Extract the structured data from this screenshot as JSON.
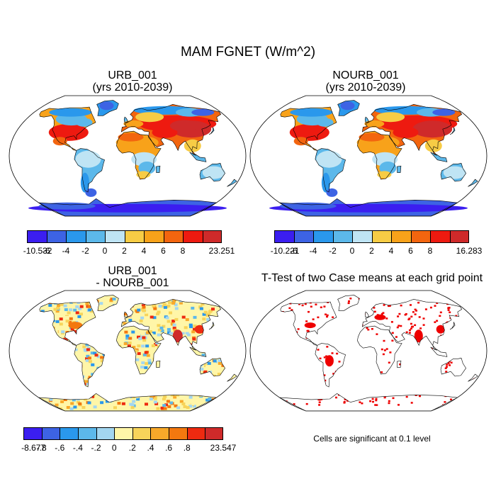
{
  "figure": {
    "title": "MAM FGNET (W/m^2)"
  },
  "panels": [
    {
      "id": "urb",
      "title_line1": "URB_001",
      "title_line2": "(yrs 2010-2039)"
    },
    {
      "id": "nourb",
      "title_line1": "NOURB_001",
      "title_line2": "(yrs 2010-2039)"
    },
    {
      "id": "diff",
      "title_line1": "URB_001",
      "title_line2": "- NOURB_001"
    },
    {
      "id": "ttest",
      "title_line1": "T-Test of two Case means at each grid point",
      "title_line2": ""
    }
  ],
  "colorbars": [
    {
      "id": "urb",
      "labels": [
        "-10.532",
        "-6",
        "-4",
        "-2",
        "0",
        "2",
        "4",
        "6",
        "8",
        "23.251"
      ],
      "colors": [
        "#3b1ef0",
        "#3d63e4",
        "#2a98ec",
        "#5cb8ea",
        "#bfe4f4",
        "#f7cc45",
        "#f8a21a",
        "#f3650f",
        "#ee1a10",
        "#cf2a2a"
      ]
    },
    {
      "id": "nourb",
      "labels": [
        "-10.221",
        "-6",
        "-4",
        "-2",
        "0",
        "2",
        "4",
        "6",
        "8",
        "16.283"
      ],
      "colors": [
        "#3b1ef0",
        "#3d63e4",
        "#2a98ec",
        "#5cb8ea",
        "#bfe4f4",
        "#f7cc45",
        "#f8a21a",
        "#f3650f",
        "#ee1a10",
        "#cf2a2a"
      ]
    },
    {
      "id": "diff",
      "labels": [
        "-8.677",
        "-.8",
        "-.6",
        "-.4",
        "-.2",
        "0",
        ".2",
        ".4",
        ".6",
        ".8",
        "23.547"
      ],
      "colors": [
        "#3b1ef0",
        "#3d63e4",
        "#2a98ec",
        "#5cb8ea",
        "#a3d6f0",
        "#fff6a8",
        "#f7d45a",
        "#f8a92a",
        "#f3780f",
        "#ee2a10",
        "#cf2a2a"
      ]
    }
  ],
  "footnote": "Cells are significant at 0.1 level",
  "map_colors": {
    "ocean": "#ffffff",
    "coast": "#000000",
    "significant": "#ee0000"
  }
}
